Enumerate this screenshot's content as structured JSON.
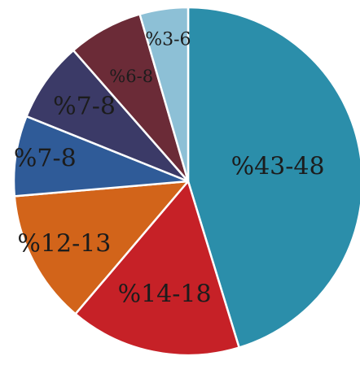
{
  "chart_data": {
    "type": "pie",
    "title": "",
    "slices": [
      {
        "label": "%43-48",
        "value": 45.5,
        "color": "#2b8eaa"
      },
      {
        "label": "%14-18",
        "value": 16,
        "color": "#c62127"
      },
      {
        "label": "%12-13",
        "value": 12.5,
        "color": "#d2641a"
      },
      {
        "label": "%7-8",
        "value": 7.5,
        "color": "#2f5b98"
      },
      {
        "label": "%7-8",
        "value": 7.5,
        "color": "#3b3a67"
      },
      {
        "label": "%6-8",
        "value": 7,
        "color": "#6b2b37"
      },
      {
        "label": "%3-6",
        "value": 4.5,
        "color": "#8dc0d6"
      }
    ],
    "start_angle": "12 o'clock",
    "direction": "clockwise",
    "legend": "none"
  }
}
